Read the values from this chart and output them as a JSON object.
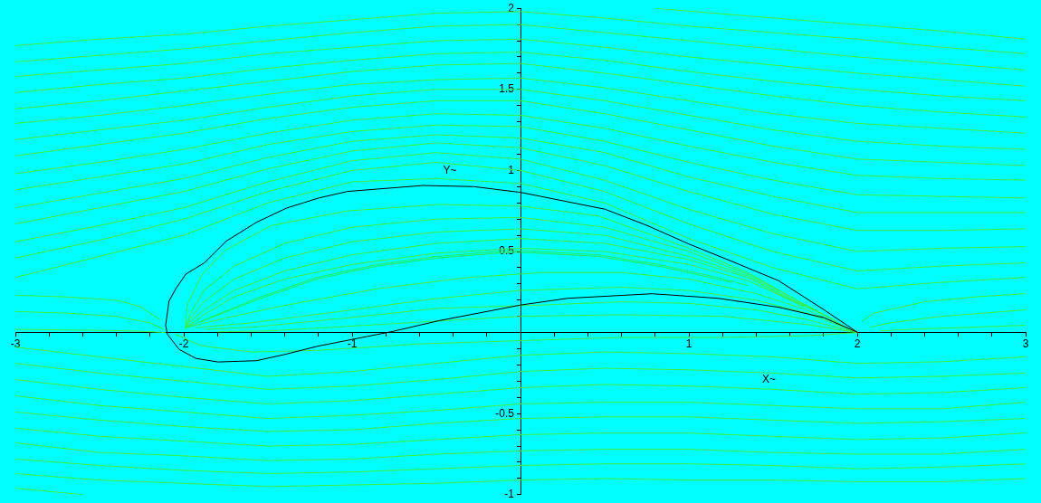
{
  "chart_data": {
    "type": "line",
    "xlabel": "X~",
    "ylabel": "Y~",
    "xlim": [
      -3,
      3
    ],
    "ylim": [
      -1,
      2
    ],
    "xticks": [
      -3,
      {
        "value": -2.8,
        "label": null
      },
      {
        "value": -2.6,
        "label": null
      },
      {
        "value": -2.4,
        "label": null
      },
      {
        "value": -2.2,
        "label": null
      },
      -2,
      {
        "value": -1.8,
        "label": null
      },
      {
        "value": -1.6,
        "label": null
      },
      {
        "value": -1.4,
        "label": null
      },
      {
        "value": -1.2,
        "label": null
      },
      -1,
      {
        "value": -0.8,
        "label": null
      },
      {
        "value": -0.6,
        "label": null
      },
      {
        "value": -0.4,
        "label": null
      },
      {
        "value": -0.2,
        "label": null
      },
      {
        "value": 0.2,
        "label": null
      },
      {
        "value": 0.4,
        "label": null
      },
      {
        "value": 0.6,
        "label": null
      },
      {
        "value": 0.8,
        "label": null
      },
      1,
      {
        "value": 1.2,
        "label": null
      },
      {
        "value": 1.4,
        "label": null
      },
      {
        "value": 1.6,
        "label": null
      },
      {
        "value": 1.8,
        "label": null
      },
      2,
      {
        "value": 2.2,
        "label": null
      },
      {
        "value": 2.4,
        "label": null
      },
      {
        "value": 2.6,
        "label": null
      },
      {
        "value": 2.8,
        "label": null
      },
      3
    ],
    "yticks": [
      -1,
      {
        "value": -0.9,
        "label": null
      },
      {
        "value": -0.8,
        "label": null
      },
      {
        "value": -0.7,
        "label": null
      },
      {
        "value": -0.6,
        "label": null
      },
      -0.5,
      {
        "value": -0.4,
        "label": null
      },
      {
        "value": -0.3,
        "label": null
      },
      {
        "value": -0.2,
        "label": null
      },
      {
        "value": -0.1,
        "label": null
      },
      {
        "value": 0.1,
        "label": null
      },
      {
        "value": 0.2,
        "label": null
      },
      {
        "value": 0.3,
        "label": null
      },
      {
        "value": 0.4,
        "label": null
      },
      0.5,
      {
        "value": 0.6,
        "label": null
      },
      {
        "value": 0.7,
        "label": null
      },
      {
        "value": 0.8,
        "label": null
      },
      {
        "value": 0.9,
        "label": null
      },
      1,
      {
        "value": 1.1,
        "label": null
      },
      {
        "value": 1.2,
        "label": null
      },
      {
        "value": 1.3,
        "label": null
      },
      {
        "value": 1.4,
        "label": null
      },
      1.5,
      {
        "value": 1.6,
        "label": null
      },
      {
        "value": 1.7,
        "label": null
      },
      {
        "value": 1.8,
        "label": null
      },
      {
        "value": 1.9,
        "label": null
      },
      2
    ],
    "x": [
      -3,
      -2.5,
      -2,
      -1.5,
      -1,
      -0.5,
      0,
      0.5,
      1,
      1.5,
      2,
      2.5,
      3
    ],
    "series": [
      {
        "color": "#3cf03c",
        "values": [
          1.77,
          1.81,
          1.84,
          1.89,
          1.93,
          1.97,
          1.98,
          1.94,
          1.89,
          1.85,
          1.81,
          1.76,
          1.72
        ]
      },
      {
        "color": "#3cf03c",
        "values": [
          1.67,
          1.71,
          1.75,
          1.8,
          1.85,
          1.89,
          1.9,
          1.85,
          1.8,
          1.75,
          1.7,
          1.66,
          1.62
        ]
      },
      {
        "color": "#3cf03c",
        "values": [
          1.58,
          1.62,
          1.66,
          1.72,
          1.76,
          1.8,
          1.81,
          1.76,
          1.7,
          1.65,
          1.6,
          1.56,
          1.52
        ]
      },
      {
        "color": "#3cf03c",
        "values": [
          1.48,
          1.53,
          1.57,
          1.63,
          1.68,
          1.72,
          1.73,
          1.68,
          1.61,
          1.55,
          1.5,
          1.46,
          1.43
        ]
      },
      {
        "color": "#3cf03c",
        "values": [
          1.38,
          1.43,
          1.49,
          1.55,
          1.61,
          1.65,
          1.66,
          1.6,
          1.53,
          1.46,
          1.4,
          1.36,
          1.33
        ]
      },
      {
        "color": "#3cf03c",
        "values": [
          1.29,
          1.34,
          1.4,
          1.47,
          1.53,
          1.56,
          1.57,
          1.51,
          1.43,
          1.35,
          1.29,
          1.26,
          1.23
        ]
      },
      {
        "color": "#3cf03c",
        "values": [
          1.19,
          1.25,
          1.31,
          1.39,
          1.46,
          1.5,
          1.5,
          1.43,
          1.34,
          1.25,
          1.18,
          1.15,
          1.13
        ]
      },
      {
        "color": "#3cf03c",
        "values": [
          1.09,
          1.16,
          1.23,
          1.32,
          1.39,
          1.43,
          1.43,
          1.35,
          1.25,
          1.15,
          1.07,
          1.05,
          1.03
        ]
      },
      {
        "color": "#3cf03c",
        "values": [
          0.98,
          1.05,
          1.13,
          1.23,
          1.31,
          1.35,
          1.34,
          1.26,
          1.15,
          1.05,
          0.97,
          0.95,
          0.94
        ]
      },
      {
        "color": "#3cf03c",
        "values": [
          0.88,
          0.96,
          1.04,
          1.16,
          1.24,
          1.28,
          1.27,
          1.18,
          1.05,
          0.94,
          0.85,
          0.84,
          0.83
        ]
      },
      {
        "color": "#3cf03c",
        "values": [
          0.77,
          0.86,
          0.95,
          1.08,
          1.18,
          1.22,
          1.2,
          1.11,
          0.96,
          0.84,
          0.74,
          0.74,
          0.74
        ]
      },
      {
        "color": "#3cf03c",
        "values": [
          0.67,
          0.77,
          0.87,
          1.01,
          1.12,
          1.17,
          1.14,
          1.03,
          0.87,
          0.73,
          0.63,
          0.63,
          0.64
        ]
      },
      {
        "color": "#3cf03c",
        "values": [
          0.56,
          0.66,
          0.77,
          0.93,
          1.06,
          1.11,
          1.07,
          0.94,
          0.76,
          0.61,
          0.5,
          0.52,
          0.53
        ]
      },
      {
        "color": "#3cf03c",
        "values": [
          0.46,
          0.57,
          0.7,
          0.87,
          1.0,
          1.05,
          1.0,
          0.87,
          0.67,
          0.5,
          0.38,
          0.41,
          0.43
        ]
      },
      {
        "color": "#3cf03c",
        "values": [
          0.34,
          0.47,
          0.6,
          0.8,
          0.93,
          0.95,
          0.92,
          0.8,
          0.58,
          0.4,
          0.27,
          0.31,
          0.34
        ]
      },
      {
        "color": "#3cf03c",
        "x": [
          0.8,
          1.5,
          2,
          2.5,
          3
        ],
        "values": [
          2.0,
          1.94,
          1.9,
          1.86,
          1.81
        ]
      },
      {
        "color": "#3cf03c",
        "values": [
          -0.09,
          -0.15,
          -0.21,
          -0.27,
          -0.24,
          -0.19,
          -0.14,
          -0.12,
          -0.13,
          -0.15,
          -0.19,
          -0.18,
          -0.15
        ]
      },
      {
        "color": "#3cf03c",
        "values": [
          -0.19,
          -0.25,
          -0.3,
          -0.35,
          -0.33,
          -0.29,
          -0.24,
          -0.22,
          -0.23,
          -0.25,
          -0.28,
          -0.27,
          -0.25
        ]
      },
      {
        "color": "#3cf03c",
        "values": [
          -0.29,
          -0.35,
          -0.4,
          -0.44,
          -0.42,
          -0.38,
          -0.34,
          -0.32,
          -0.33,
          -0.35,
          -0.38,
          -0.37,
          -0.34
        ]
      },
      {
        "color": "#3cf03c",
        "values": [
          -0.39,
          -0.45,
          -0.49,
          -0.53,
          -0.51,
          -0.48,
          -0.44,
          -0.43,
          -0.43,
          -0.45,
          -0.47,
          -0.47,
          -0.43
        ]
      },
      {
        "color": "#3cf03c",
        "values": [
          -0.49,
          -0.54,
          -0.58,
          -0.61,
          -0.6,
          -0.56,
          -0.53,
          -0.52,
          -0.52,
          -0.54,
          -0.56,
          -0.55,
          -0.53
        ]
      },
      {
        "color": "#3cf03c",
        "values": [
          -0.59,
          -0.64,
          -0.67,
          -0.7,
          -0.69,
          -0.66,
          -0.63,
          -0.62,
          -0.62,
          -0.64,
          -0.66,
          -0.65,
          -0.62
        ]
      },
      {
        "color": "#3cf03c",
        "values": [
          -0.68,
          -0.74,
          -0.76,
          -0.79,
          -0.78,
          -0.75,
          -0.73,
          -0.72,
          -0.72,
          -0.74,
          -0.75,
          -0.75,
          -0.72
        ]
      },
      {
        "color": "#3cf03c",
        "values": [
          -0.78,
          -0.82,
          -0.85,
          -0.87,
          -0.86,
          -0.84,
          -0.82,
          -0.81,
          -0.81,
          -0.82,
          -0.84,
          -0.83,
          -0.81
        ]
      },
      {
        "color": "#3cf03c",
        "values": [
          -0.87,
          -0.91,
          -0.93,
          -0.95,
          -0.94,
          -0.93,
          -0.91,
          -0.9,
          -0.91,
          -0.91,
          -0.92,
          -0.92,
          -0.9
        ]
      },
      {
        "color": "#3cf03c",
        "x": [
          -3,
          -2.8,
          -2.6
        ],
        "values": [
          -0.96,
          -0.98,
          -1.0
        ]
      },
      {
        "color": "#3cf03c",
        "x": [
          -3,
          -2.7,
          -2.4,
          -2.26,
          -2.14
        ],
        "values": [
          0.23,
          0.22,
          0.2,
          0.16,
          0.08
        ]
      },
      {
        "color": "#3cf03c",
        "x": [
          -3,
          -2.7,
          -2.4,
          -2.2,
          -2.12
        ],
        "values": [
          0.13,
          0.12,
          0.1,
          0.06,
          0.02
        ]
      },
      {
        "color": "#3cf03c",
        "x": [
          -3,
          -2.6,
          -2.3,
          -2.11
        ],
        "values": [
          0.02,
          0.015,
          0.01,
          0
        ]
      },
      {
        "color": "#3cf03c",
        "x": [
          -1.99,
          -1.98,
          -1.89,
          -1.75,
          -1.48,
          -1.03,
          -0.49,
          0,
          0.46,
          1.0,
          1.35,
          1.64,
          1.92
        ],
        "values": [
          0.03,
          0.17,
          0.36,
          0.51,
          0.66,
          0.75,
          0.79,
          0.78,
          0.72,
          0.52,
          0.37,
          0.2,
          0.04
        ]
      },
      {
        "color": "#3cf03c",
        "x": [
          -1.99,
          -1.96,
          -1.88,
          -1.7,
          -1.4,
          -1.0,
          -0.5,
          0,
          0.5,
          1.0,
          1.35,
          1.64,
          1.86
        ],
        "values": [
          0.03,
          0.12,
          0.26,
          0.41,
          0.55,
          0.65,
          0.7,
          0.71,
          0.65,
          0.5,
          0.36,
          0.2,
          0.08
        ]
      },
      {
        "color": "#3cf03c",
        "x": [
          -1.99,
          -1.96,
          -1.88,
          -1.7,
          -1.4,
          -1.0,
          -0.5,
          0,
          0.5,
          1.0,
          1.35,
          1.6,
          1.8
        ],
        "values": [
          0.03,
          0.09,
          0.19,
          0.33,
          0.46,
          0.56,
          0.62,
          0.64,
          0.6,
          0.47,
          0.35,
          0.21,
          0.11
        ]
      },
      {
        "color": "#3cf03c",
        "x": [
          -1.99,
          -1.96,
          -1.88,
          -1.7,
          -1.4,
          -1.0,
          -0.5,
          0,
          0.5,
          1.0,
          1.35,
          1.55,
          1.74
        ],
        "values": [
          0.03,
          0.07,
          0.14,
          0.26,
          0.38,
          0.48,
          0.55,
          0.58,
          0.55,
          0.45,
          0.34,
          0.23,
          0.14
        ]
      },
      {
        "color": "#3cf03c",
        "x": [
          -1.99,
          -1.96,
          -1.88,
          -1.7,
          -1.4,
          -1.0,
          -0.5,
          0,
          0.5,
          1.0,
          1.35,
          1.5,
          1.68
        ],
        "values": [
          0.03,
          0.05,
          0.11,
          0.22,
          0.33,
          0.42,
          0.49,
          0.52,
          0.5,
          0.42,
          0.32,
          0.25,
          0.16
        ]
      },
      {
        "color": "#22ee55",
        "x": [
          -1.99,
          -1.57,
          -1.21,
          -0.85,
          -0.49,
          -0.13,
          0,
          0.46,
          0.82,
          1.17,
          1.35
        ],
        "values": [
          0.03,
          0.21,
          0.34,
          0.42,
          0.47,
          0.5,
          0.505,
          0.48,
          0.42,
          0.34,
          0.29
        ]
      },
      {
        "color": "#22ee55",
        "x": [
          -1.9,
          -1.57,
          -1.21,
          -0.85,
          -0.49,
          -0.13,
          0,
          0.46,
          0.82,
          1.17,
          1.25
        ],
        "values": [
          0.065,
          0.2,
          0.33,
          0.41,
          0.46,
          0.49,
          0.495,
          0.47,
          0.41,
          0.33,
          0.31
        ]
      },
      {
        "color": "#3cf03c",
        "x": [
          -1.99,
          -1.75,
          -1.39,
          -0.85,
          -0.31,
          0.13,
          0.6,
          1.0,
          1.4,
          1.7,
          2
        ],
        "values": [
          0.03,
          0.09,
          0.17,
          0.27,
          0.34,
          0.37,
          0.37,
          0.33,
          0.24,
          0.14,
          0
        ]
      },
      {
        "color": "#3cf03c",
        "x": [
          -1.93,
          -1.6,
          -1.0,
          -0.5,
          0,
          0.6,
          1.0,
          1.4,
          1.7,
          2
        ],
        "values": [
          0.03,
          0.06,
          0.14,
          0.21,
          0.26,
          0.28,
          0.26,
          0.2,
          0.12,
          0
        ]
      },
      {
        "color": "#3cf03c",
        "x": [
          -1.87,
          -1.57,
          -1.03,
          -0.49,
          0.13,
          0.6,
          1.0,
          1.4,
          1.7,
          2
        ],
        "values": [
          0.02,
          0.035,
          0.09,
          0.15,
          0.17,
          0.19,
          0.18,
          0.14,
          0.08,
          0
        ]
      },
      {
        "color": "#3cf03c",
        "x": [
          -1.8,
          -1.5,
          -1.0,
          -0.5,
          0,
          0.6,
          1.2,
          1.7,
          2
        ],
        "values": [
          0.005,
          0.01,
          0.04,
          0.07,
          0.1,
          0.11,
          0.1,
          0.05,
          0
        ]
      },
      {
        "color": "#3cf03c",
        "x": [
          -2.05,
          -1.9,
          -1.6,
          -1.2,
          -0.6,
          0,
          0.6,
          1.2,
          1.7,
          2
        ],
        "values": [
          -0.01,
          -0.08,
          -0.12,
          -0.11,
          -0.07,
          -0.05,
          -0.03,
          -0.03,
          -0.02,
          0
        ]
      },
      {
        "color": "#3cf03c",
        "x": [
          2.03,
          2.1,
          2.4,
          2.7,
          3
        ],
        "values": [
          0.07,
          0.12,
          0.19,
          0.22,
          0.24
        ]
      },
      {
        "color": "#3cf03c",
        "x": [
          2.08,
          2.2,
          2.5,
          3
        ],
        "values": [
          0.035,
          0.06,
          0.1,
          0.14
        ]
      },
      {
        "color": "#3cf03c",
        "x": [
          2.14,
          2.3,
          2.6,
          3
        ],
        "values": [
          0.01,
          0.02,
          0.03,
          0.045
        ]
      }
    ]
  }
}
